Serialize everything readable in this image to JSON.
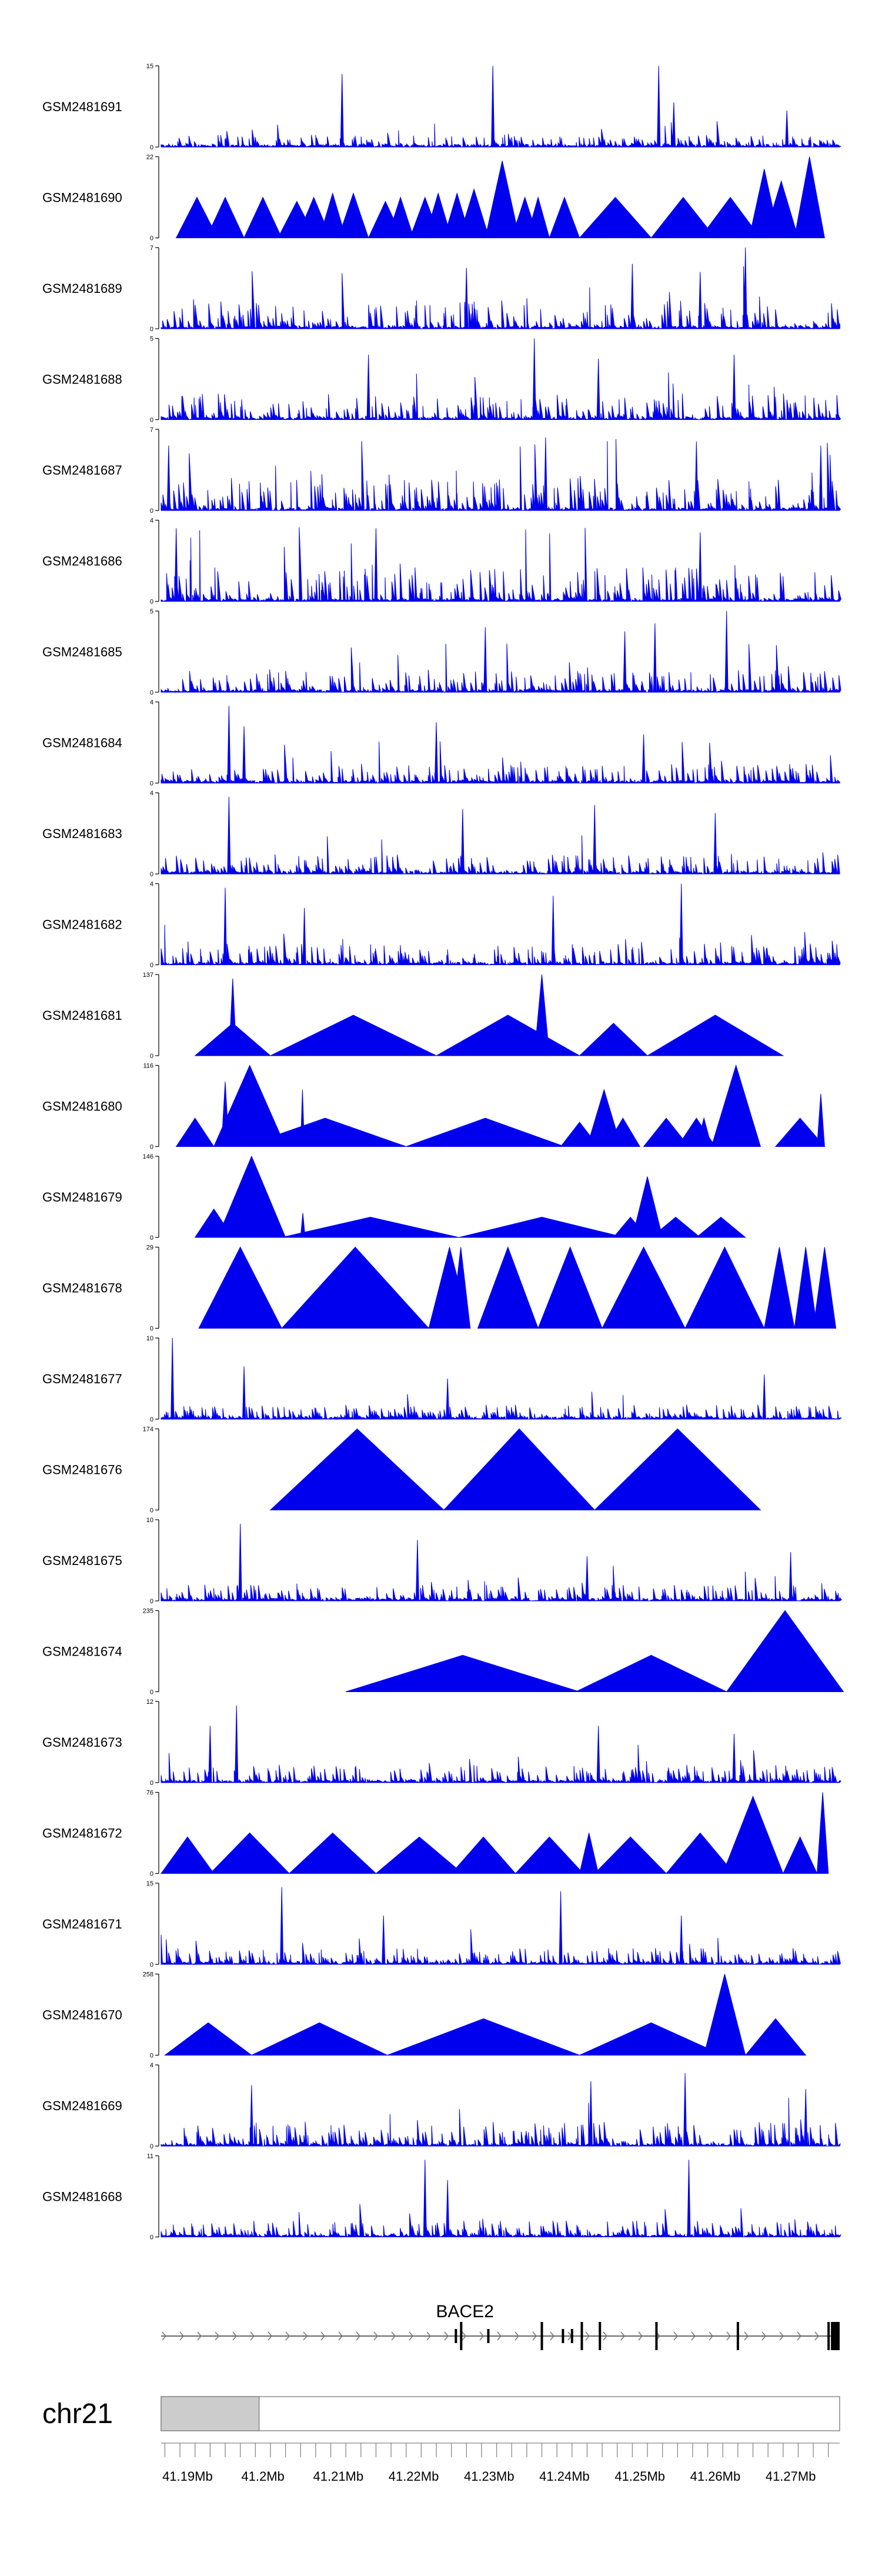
{
  "chart_data": {
    "type": "area",
    "title": "",
    "xlabel": "",
    "ylabel": "",
    "region": {
      "chromosome": "chr21",
      "start_mb": 41.1865,
      "end_mb": 41.2765
    },
    "x_ticks": [
      "41.19Mb",
      "41.2Mb",
      "41.21Mb",
      "41.22Mb",
      "41.23Mb",
      "41.24Mb",
      "41.25Mb",
      "41.26Mb",
      "41.27Mb"
    ],
    "x_tick_values": [
      41.19,
      41.2,
      41.21,
      41.22,
      41.23,
      41.24,
      41.25,
      41.26,
      41.27
    ],
    "tracks": [
      {
        "name": "GSM2481691",
        "ymax": "15",
        "ymin": "0",
        "style": "noise",
        "seed": 11,
        "level": 0.15,
        "spikes": [
          [
            41.2105,
            0.9
          ],
          [
            41.2305,
            1.0
          ],
          [
            41.2525,
            1.0
          ],
          [
            41.2545,
            0.55
          ],
          [
            41.2695,
            0.45
          ]
        ]
      },
      {
        "name": "GSM2481690",
        "ymax": "22",
        "ymin": "0",
        "style": "peaks",
        "peaks": [
          [
            41.1885,
            41.194,
            0.5
          ],
          [
            41.1925,
            41.1975,
            0.5
          ],
          [
            41.1975,
            41.2025,
            0.5
          ],
          [
            41.202,
            41.207,
            0.45
          ],
          [
            41.2045,
            41.209,
            0.5
          ],
          [
            41.2075,
            41.211,
            0.55
          ],
          [
            41.21,
            41.214,
            0.55
          ],
          [
            41.214,
            41.2185,
            0.45
          ],
          [
            41.2165,
            41.22,
            0.5
          ],
          [
            41.2195,
            41.2235,
            0.5
          ],
          [
            41.2215,
            41.225,
            0.55
          ],
          [
            41.224,
            41.2275,
            0.55
          ],
          [
            41.226,
            41.23,
            0.6
          ],
          [
            41.2295,
            41.234,
            0.95
          ],
          [
            41.233,
            41.2365,
            0.5
          ],
          [
            41.235,
            41.238,
            0.5
          ],
          [
            41.238,
            41.242,
            0.5
          ],
          [
            41.242,
            41.2515,
            0.5
          ],
          [
            41.2515,
            41.26,
            0.5
          ],
          [
            41.258,
            41.266,
            0.5
          ],
          [
            41.2645,
            41.2685,
            0.85
          ],
          [
            41.2665,
            41.271,
            0.7
          ],
          [
            41.2705,
            41.2745,
            1.0
          ]
        ]
      },
      {
        "name": "GSM2481689",
        "ymax": "7",
        "ymin": "0",
        "style": "noise",
        "seed": 23,
        "level": 0.35,
        "spikes": [
          [
            41.227,
            0.75
          ],
          [
            41.249,
            0.8
          ],
          [
            41.258,
            0.7
          ],
          [
            41.264,
            1.0
          ]
        ]
      },
      {
        "name": "GSM2481688",
        "ymax": "5",
        "ymin": "0",
        "style": "noise",
        "seed": 37,
        "level": 0.32,
        "spikes": [
          [
            41.214,
            0.8
          ],
          [
            41.236,
            1.0
          ],
          [
            41.2445,
            0.75
          ],
          [
            41.2625,
            0.8
          ]
        ]
      },
      {
        "name": "GSM2481687",
        "ymax": "7",
        "ymin": "0",
        "style": "noise",
        "seed": 41,
        "level": 0.4,
        "spikes": [
          [
            41.1875,
            0.8
          ],
          [
            41.2375,
            0.9
          ],
          [
            41.2575,
            0.85
          ],
          [
            41.274,
            0.8
          ]
        ]
      },
      {
        "name": "GSM2481686",
        "ymax": "4",
        "ymin": "0",
        "style": "noise",
        "seed": 53,
        "level": 0.42,
        "spikes": [
          [
            41.1885,
            0.9
          ],
          [
            41.215,
            0.9
          ],
          [
            41.258,
            0.85
          ]
        ]
      },
      {
        "name": "GSM2481685",
        "ymax": "5",
        "ymin": "0",
        "style": "noise",
        "seed": 61,
        "level": 0.28,
        "spikes": [
          [
            41.2295,
            0.8
          ],
          [
            41.248,
            0.75
          ],
          [
            41.252,
            0.85
          ],
          [
            41.2615,
            1.0
          ]
        ]
      },
      {
        "name": "GSM2481684",
        "ymax": "4",
        "ymin": "0",
        "style": "noise",
        "seed": 71,
        "level": 0.24,
        "spikes": [
          [
            41.1955,
            0.95
          ],
          [
            41.1975,
            0.7
          ],
          [
            41.223,
            0.75
          ],
          [
            41.2505,
            0.6
          ]
        ]
      },
      {
        "name": "GSM2481683",
        "ymax": "4",
        "ymin": "0",
        "style": "noise",
        "seed": 83,
        "level": 0.24,
        "spikes": [
          [
            41.1955,
            0.95
          ],
          [
            41.2265,
            0.8
          ],
          [
            41.244,
            0.85
          ],
          [
            41.26,
            0.75
          ]
        ]
      },
      {
        "name": "GSM2481682",
        "ymax": "4",
        "ymin": "0",
        "style": "noise",
        "seed": 97,
        "level": 0.26,
        "spikes": [
          [
            41.195,
            0.95
          ],
          [
            41.2055,
            0.7
          ],
          [
            41.2385,
            0.85
          ],
          [
            41.2555,
            1.0
          ]
        ]
      },
      {
        "name": "GSM2481681",
        "ymax": "137",
        "ymin": "0",
        "style": "peaks",
        "peaks": [
          [
            41.191,
            41.201,
            0.4
          ],
          [
            41.1955,
            41.1965,
            0.95
          ],
          [
            41.201,
            41.223,
            0.5
          ],
          [
            41.223,
            41.242,
            0.5
          ],
          [
            41.236,
            41.238,
            1.0
          ],
          [
            41.242,
            41.251,
            0.4
          ],
          [
            41.251,
            41.269,
            0.5
          ]
        ]
      },
      {
        "name": "GSM2481680",
        "ymax": "116",
        "ymin": "0",
        "style": "peaks",
        "peaks": [
          [
            41.1885,
            41.1935,
            0.35
          ],
          [
            41.1935,
            41.203,
            1.0
          ],
          [
            41.1945,
            41.1955,
            0.8
          ],
          [
            41.1975,
            41.219,
            0.35
          ],
          [
            41.205,
            41.2055,
            0.7
          ],
          [
            41.219,
            41.24,
            0.35
          ],
          [
            41.2395,
            41.2445,
            0.3
          ],
          [
            41.243,
            41.2475,
            0.7
          ],
          [
            41.2455,
            41.25,
            0.35
          ],
          [
            41.2505,
            41.2565,
            0.35
          ],
          [
            41.255,
            41.26,
            0.35
          ],
          [
            41.2575,
            41.2595,
            0.35
          ],
          [
            41.2595,
            41.266,
            1.0
          ],
          [
            41.268,
            41.2745,
            0.35
          ],
          [
            41.2735,
            41.2745,
            0.65
          ]
        ]
      },
      {
        "name": "GSM2481679",
        "ymax": "146",
        "ymin": "0",
        "style": "peaks",
        "peaks": [
          [
            41.191,
            41.196,
            0.35
          ],
          [
            41.194,
            41.203,
            1.0
          ],
          [
            41.2025,
            41.226,
            0.25
          ],
          [
            41.205,
            41.2056,
            0.3
          ],
          [
            41.226,
            41.248,
            0.25
          ],
          [
            41.2465,
            41.251,
            0.25
          ],
          [
            41.249,
            41.253,
            0.75
          ],
          [
            41.2515,
            41.258,
            0.25
          ],
          [
            41.2575,
            41.264,
            0.25
          ]
        ]
      },
      {
        "name": "GSM2481678",
        "ymax": "29",
        "ymin": "0",
        "style": "peaks",
        "peaks": [
          [
            41.1915,
            41.2025,
            1.0
          ],
          [
            41.2025,
            41.222,
            1.0
          ],
          [
            41.222,
            41.2275,
            1.0
          ],
          [
            41.225,
            41.2275,
            1.0
          ],
          [
            41.2285,
            41.2365,
            1.0
          ],
          [
            41.2365,
            41.245,
            1.0
          ],
          [
            41.245,
            41.256,
            1.0
          ],
          [
            41.256,
            41.2665,
            1.0
          ],
          [
            41.2665,
            41.2705,
            1.0
          ],
          [
            41.2705,
            41.2735,
            1.0
          ],
          [
            41.273,
            41.276,
            1.0
          ]
        ]
      },
      {
        "name": "GSM2481677",
        "ymax": "10",
        "ymin": "0",
        "style": "noise",
        "seed": 109,
        "level": 0.18,
        "spikes": [
          [
            41.188,
            1.0
          ],
          [
            41.1975,
            0.65
          ],
          [
            41.2245,
            0.5
          ],
          [
            41.2665,
            0.55
          ]
        ]
      },
      {
        "name": "GSM2481676",
        "ymax": "174",
        "ymin": "0",
        "style": "peaks",
        "peaks": [
          [
            41.201,
            41.224,
            1.0
          ],
          [
            41.224,
            41.244,
            1.0
          ],
          [
            41.244,
            41.266,
            1.0
          ]
        ]
      },
      {
        "name": "GSM2481675",
        "ymax": "10",
        "ymin": "0",
        "style": "noise",
        "seed": 127,
        "level": 0.2,
        "spikes": [
          [
            41.197,
            0.95
          ],
          [
            41.2205,
            0.75
          ],
          [
            41.243,
            0.55
          ],
          [
            41.27,
            0.6
          ]
        ]
      },
      {
        "name": "GSM2481674",
        "ymax": "235",
        "ymin": "0",
        "style": "peaks",
        "peaks": [
          [
            41.211,
            41.242,
            0.45
          ],
          [
            41.2415,
            41.2615,
            0.45
          ],
          [
            41.2615,
            41.277,
            1.0
          ]
        ]
      },
      {
        "name": "GSM2481673",
        "ymax": "12",
        "ymin": "0",
        "style": "noise",
        "seed": 131,
        "level": 0.22,
        "spikes": [
          [
            41.1965,
            0.95
          ],
          [
            41.193,
            0.7
          ],
          [
            41.2445,
            0.7
          ],
          [
            41.2625,
            0.6
          ]
        ]
      },
      {
        "name": "GSM2481672",
        "ymax": "76",
        "ymin": "0",
        "style": "peaks",
        "peaks": [
          [
            41.1865,
            41.1935,
            0.45
          ],
          [
            41.193,
            41.2035,
            0.5
          ],
          [
            41.2035,
            41.215,
            0.5
          ],
          [
            41.215,
            41.2265,
            0.45
          ],
          [
            41.225,
            41.2335,
            0.45
          ],
          [
            41.2335,
            41.2425,
            0.45
          ],
          [
            41.242,
            41.2445,
            0.5
          ],
          [
            41.244,
            41.2535,
            0.45
          ],
          [
            41.2535,
            41.2625,
            0.5
          ],
          [
            41.261,
            41.269,
            0.95
          ],
          [
            41.269,
            41.2735,
            0.45
          ],
          [
            41.2735,
            41.275,
            1.0
          ]
        ]
      },
      {
        "name": "GSM2481671",
        "ymax": "15",
        "ymin": "0",
        "style": "noise",
        "seed": 149,
        "level": 0.2,
        "spikes": [
          [
            41.2025,
            0.95
          ],
          [
            41.2395,
            0.9
          ],
          [
            41.216,
            0.6
          ],
          [
            41.2555,
            0.6
          ]
        ]
      },
      {
        "name": "GSM2481670",
        "ymax": "258",
        "ymin": "0",
        "style": "peaks",
        "peaks": [
          [
            41.187,
            41.1985,
            0.4
          ],
          [
            41.1985,
            41.2165,
            0.4
          ],
          [
            41.2165,
            41.242,
            0.45
          ],
          [
            41.242,
            41.261,
            0.4
          ],
          [
            41.2585,
            41.264,
            1.0
          ],
          [
            41.264,
            41.272,
            0.45
          ]
        ]
      },
      {
        "name": "GSM2481669",
        "ymax": "4",
        "ymin": "0",
        "style": "noise",
        "seed": 163,
        "level": 0.3,
        "spikes": [
          [
            41.1985,
            0.75
          ],
          [
            41.2435,
            0.8
          ],
          [
            41.256,
            0.9
          ],
          [
            41.272,
            0.7
          ]
        ]
      },
      {
        "name": "GSM2481668",
        "ymax": "11",
        "ymin": "0",
        "style": "noise",
        "seed": 173,
        "level": 0.2,
        "spikes": [
          [
            41.2215,
            0.95
          ],
          [
            41.2245,
            0.7
          ],
          [
            41.2565,
            0.95
          ]
        ]
      }
    ],
    "gene": {
      "symbol": "BACE2",
      "start_mb": 41.1865,
      "end_mb": 41.2765,
      "strand": "+",
      "exons_mb": [
        41.2256,
        41.2263,
        41.2299,
        41.237,
        41.2398,
        41.241,
        41.2423,
        41.2447,
        41.2522,
        41.263
      ],
      "tall_exons_mb": [
        41.2263,
        41.237,
        41.2423,
        41.2447,
        41.2522,
        41.263
      ],
      "end_block_mb": [
        41.2755,
        41.2765
      ]
    },
    "ideogram": {
      "highlight_start_mb": 41.1865,
      "highlight_end_mb": 41.1995
    }
  }
}
